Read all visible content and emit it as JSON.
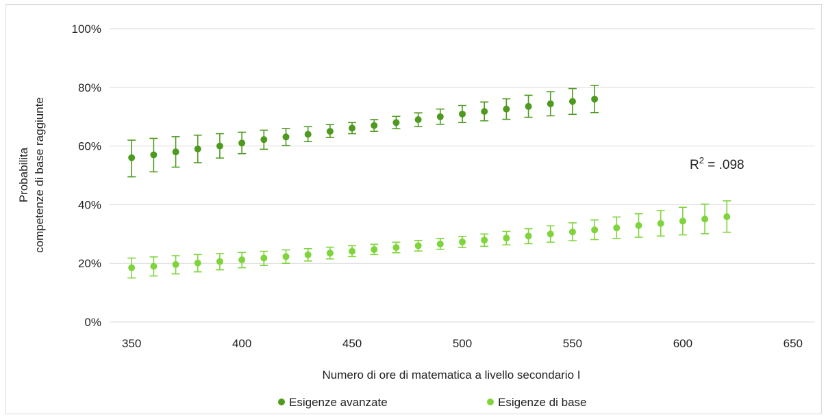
{
  "chart_data": {
    "type": "scatter",
    "xlabel": "Numero di ore di matematica a livello secondario I",
    "ylabel_line1": "Probabilita",
    "ylabel_line2": "competenze di base raggiunte",
    "xlim": [
      340,
      660
    ],
    "ylim": [
      0,
      100
    ],
    "x_ticks": [
      350,
      400,
      450,
      500,
      550,
      600,
      650
    ],
    "y_ticks": [
      0,
      20,
      40,
      60,
      80,
      100
    ],
    "y_tick_labels": [
      "0%",
      "20%",
      "40%",
      "60%",
      "80%",
      "100%"
    ],
    "grid": "horizontal",
    "legend_position": "bottom",
    "annotation": {
      "prefix": "R",
      "superscript": "2",
      "suffix": " = .098"
    },
    "series": [
      {
        "name": "Esigenze avanzate",
        "color": "#4e9a1f",
        "points": [
          {
            "x": 350,
            "y": 56.0,
            "lo": 49.5,
            "hi": 62.0
          },
          {
            "x": 360,
            "y": 57.0,
            "lo": 51.2,
            "hi": 62.6
          },
          {
            "x": 370,
            "y": 58.0,
            "lo": 52.8,
            "hi": 63.2
          },
          {
            "x": 380,
            "y": 59.0,
            "lo": 54.3,
            "hi": 63.7
          },
          {
            "x": 390,
            "y": 60.0,
            "lo": 55.9,
            "hi": 64.2
          },
          {
            "x": 400,
            "y": 61.0,
            "lo": 57.4,
            "hi": 64.7
          },
          {
            "x": 410,
            "y": 62.2,
            "lo": 58.9,
            "hi": 65.4
          },
          {
            "x": 420,
            "y": 63.1,
            "lo": 60.2,
            "hi": 66.0
          },
          {
            "x": 430,
            "y": 64.0,
            "lo": 61.5,
            "hi": 66.6
          },
          {
            "x": 440,
            "y": 65.0,
            "lo": 62.9,
            "hi": 67.3
          },
          {
            "x": 450,
            "y": 66.1,
            "lo": 64.2,
            "hi": 68.0
          },
          {
            "x": 460,
            "y": 67.0,
            "lo": 65.0,
            "hi": 69.0
          },
          {
            "x": 470,
            "y": 68.0,
            "lo": 65.9,
            "hi": 70.1
          },
          {
            "x": 480,
            "y": 69.0,
            "lo": 66.6,
            "hi": 71.3
          },
          {
            "x": 490,
            "y": 70.0,
            "lo": 67.4,
            "hi": 72.6
          },
          {
            "x": 500,
            "y": 70.9,
            "lo": 68.0,
            "hi": 73.8
          },
          {
            "x": 510,
            "y": 71.8,
            "lo": 68.6,
            "hi": 75.0
          },
          {
            "x": 520,
            "y": 72.6,
            "lo": 69.1,
            "hi": 76.1
          },
          {
            "x": 530,
            "y": 73.5,
            "lo": 69.8,
            "hi": 77.3
          },
          {
            "x": 540,
            "y": 74.4,
            "lo": 70.3,
            "hi": 78.5
          },
          {
            "x": 550,
            "y": 75.2,
            "lo": 70.8,
            "hi": 79.6
          },
          {
            "x": 560,
            "y": 76.0,
            "lo": 71.4,
            "hi": 80.7
          }
        ]
      },
      {
        "name": "Esigenze di base",
        "color": "#7fd43c",
        "points": [
          {
            "x": 350,
            "y": 18.5,
            "lo": 15.0,
            "hi": 21.8
          },
          {
            "x": 360,
            "y": 19.0,
            "lo": 15.7,
            "hi": 22.2
          },
          {
            "x": 370,
            "y": 19.6,
            "lo": 16.4,
            "hi": 22.6
          },
          {
            "x": 380,
            "y": 20.1,
            "lo": 17.1,
            "hi": 23.0
          },
          {
            "x": 390,
            "y": 20.6,
            "lo": 17.8,
            "hi": 23.3
          },
          {
            "x": 400,
            "y": 21.2,
            "lo": 18.5,
            "hi": 23.7
          },
          {
            "x": 410,
            "y": 21.8,
            "lo": 19.3,
            "hi": 24.1
          },
          {
            "x": 420,
            "y": 22.3,
            "lo": 20.0,
            "hi": 24.6
          },
          {
            "x": 430,
            "y": 22.9,
            "lo": 20.8,
            "hi": 25.0
          },
          {
            "x": 440,
            "y": 23.5,
            "lo": 21.5,
            "hi": 25.5
          },
          {
            "x": 450,
            "y": 24.1,
            "lo": 22.3,
            "hi": 26.0
          },
          {
            "x": 460,
            "y": 24.7,
            "lo": 23.0,
            "hi": 26.5
          },
          {
            "x": 470,
            "y": 25.4,
            "lo": 23.6,
            "hi": 27.2
          },
          {
            "x": 480,
            "y": 26.0,
            "lo": 24.2,
            "hi": 27.8
          },
          {
            "x": 490,
            "y": 26.6,
            "lo": 24.8,
            "hi": 28.5
          },
          {
            "x": 500,
            "y": 27.3,
            "lo": 25.4,
            "hi": 29.2
          },
          {
            "x": 510,
            "y": 27.9,
            "lo": 25.8,
            "hi": 30.0
          },
          {
            "x": 520,
            "y": 28.6,
            "lo": 26.3,
            "hi": 30.9
          },
          {
            "x": 530,
            "y": 29.3,
            "lo": 26.7,
            "hi": 31.8
          },
          {
            "x": 540,
            "y": 30.0,
            "lo": 27.2,
            "hi": 32.8
          },
          {
            "x": 550,
            "y": 30.7,
            "lo": 27.7,
            "hi": 33.8
          },
          {
            "x": 560,
            "y": 31.4,
            "lo": 28.1,
            "hi": 34.8
          },
          {
            "x": 570,
            "y": 32.1,
            "lo": 28.5,
            "hi": 35.8
          },
          {
            "x": 580,
            "y": 32.9,
            "lo": 28.9,
            "hi": 36.9
          },
          {
            "x": 590,
            "y": 33.6,
            "lo": 29.3,
            "hi": 38.0
          },
          {
            "x": 600,
            "y": 34.4,
            "lo": 29.7,
            "hi": 39.1
          },
          {
            "x": 610,
            "y": 35.1,
            "lo": 30.1,
            "hi": 40.2
          },
          {
            "x": 620,
            "y": 35.9,
            "lo": 30.6,
            "hi": 41.3
          }
        ]
      }
    ]
  }
}
